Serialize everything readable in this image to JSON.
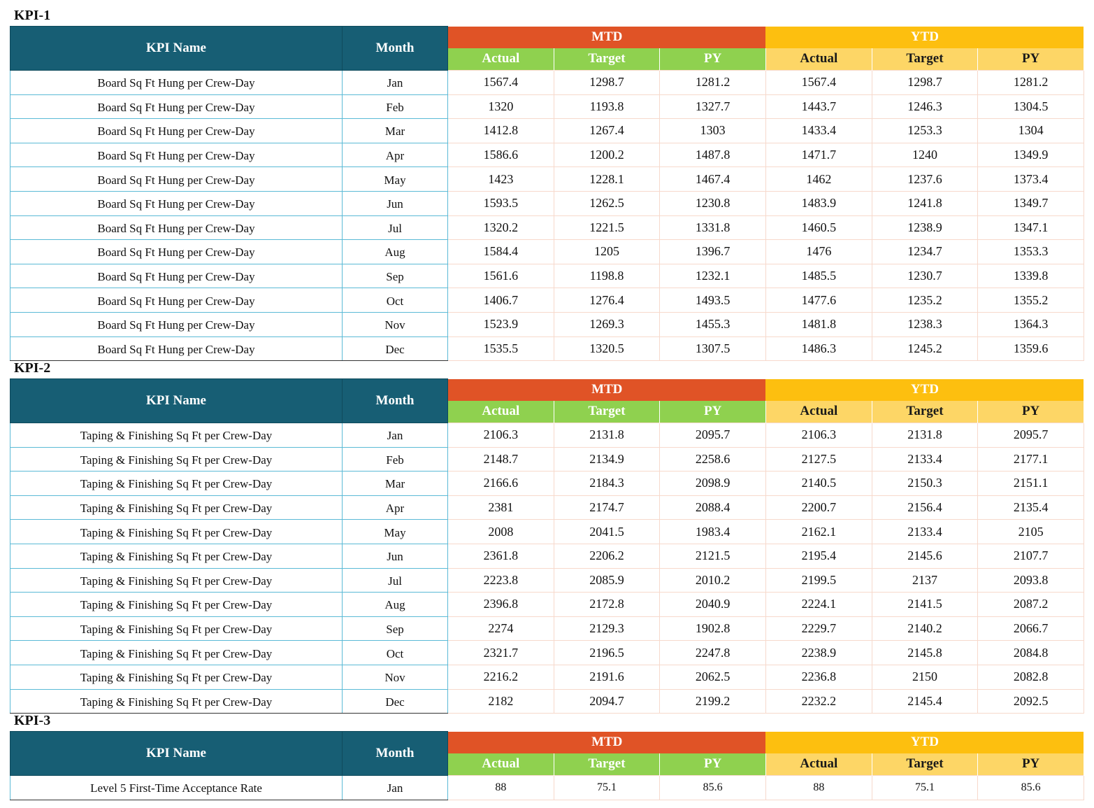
{
  "headers": {
    "kpi_name": "KPI Name",
    "month": "Month",
    "mtd": "MTD",
    "ytd": "YTD",
    "actual": "Actual",
    "target": "Target",
    "py": "PY"
  },
  "sections": [
    {
      "title": "KPI-1",
      "rows": [
        {
          "name": "Board Sq Ft Hung per Crew-Day",
          "month": "Jan",
          "mtd_actual": "1567.4",
          "mtd_target": "1298.7",
          "mtd_py": "1281.2",
          "ytd_actual": "1567.4",
          "ytd_target": "1298.7",
          "ytd_py": "1281.2"
        },
        {
          "name": "Board Sq Ft Hung per Crew-Day",
          "month": "Feb",
          "mtd_actual": "1320",
          "mtd_target": "1193.8",
          "mtd_py": "1327.7",
          "ytd_actual": "1443.7",
          "ytd_target": "1246.3",
          "ytd_py": "1304.5"
        },
        {
          "name": "Board Sq Ft Hung per Crew-Day",
          "month": "Mar",
          "mtd_actual": "1412.8",
          "mtd_target": "1267.4",
          "mtd_py": "1303",
          "ytd_actual": "1433.4",
          "ytd_target": "1253.3",
          "ytd_py": "1304"
        },
        {
          "name": "Board Sq Ft Hung per Crew-Day",
          "month": "Apr",
          "mtd_actual": "1586.6",
          "mtd_target": "1200.2",
          "mtd_py": "1487.8",
          "ytd_actual": "1471.7",
          "ytd_target": "1240",
          "ytd_py": "1349.9"
        },
        {
          "name": "Board Sq Ft Hung per Crew-Day",
          "month": "May",
          "mtd_actual": "1423",
          "mtd_target": "1228.1",
          "mtd_py": "1467.4",
          "ytd_actual": "1462",
          "ytd_target": "1237.6",
          "ytd_py": "1373.4"
        },
        {
          "name": "Board Sq Ft Hung per Crew-Day",
          "month": "Jun",
          "mtd_actual": "1593.5",
          "mtd_target": "1262.5",
          "mtd_py": "1230.8",
          "ytd_actual": "1483.9",
          "ytd_target": "1241.8",
          "ytd_py": "1349.7"
        },
        {
          "name": "Board Sq Ft Hung per Crew-Day",
          "month": "Jul",
          "mtd_actual": "1320.2",
          "mtd_target": "1221.5",
          "mtd_py": "1331.8",
          "ytd_actual": "1460.5",
          "ytd_target": "1238.9",
          "ytd_py": "1347.1"
        },
        {
          "name": "Board Sq Ft Hung per Crew-Day",
          "month": "Aug",
          "mtd_actual": "1584.4",
          "mtd_target": "1205",
          "mtd_py": "1396.7",
          "ytd_actual": "1476",
          "ytd_target": "1234.7",
          "ytd_py": "1353.3"
        },
        {
          "name": "Board Sq Ft Hung per Crew-Day",
          "month": "Sep",
          "mtd_actual": "1561.6",
          "mtd_target": "1198.8",
          "mtd_py": "1232.1",
          "ytd_actual": "1485.5",
          "ytd_target": "1230.7",
          "ytd_py": "1339.8"
        },
        {
          "name": "Board Sq Ft Hung per Crew-Day",
          "month": "Oct",
          "mtd_actual": "1406.7",
          "mtd_target": "1276.4",
          "mtd_py": "1493.5",
          "ytd_actual": "1477.6",
          "ytd_target": "1235.2",
          "ytd_py": "1355.2"
        },
        {
          "name": "Board Sq Ft Hung per Crew-Day",
          "month": "Nov",
          "mtd_actual": "1523.9",
          "mtd_target": "1269.3",
          "mtd_py": "1455.3",
          "ytd_actual": "1481.8",
          "ytd_target": "1238.3",
          "ytd_py": "1364.3"
        },
        {
          "name": "Board Sq Ft Hung per Crew-Day",
          "month": "Dec",
          "mtd_actual": "1535.5",
          "mtd_target": "1320.5",
          "mtd_py": "1307.5",
          "ytd_actual": "1486.3",
          "ytd_target": "1245.2",
          "ytd_py": "1359.6"
        }
      ]
    },
    {
      "title": "KPI-2",
      "rows": [
        {
          "name": "Taping & Finishing Sq Ft per Crew-Day",
          "month": "Jan",
          "mtd_actual": "2106.3",
          "mtd_target": "2131.8",
          "mtd_py": "2095.7",
          "ytd_actual": "2106.3",
          "ytd_target": "2131.8",
          "ytd_py": "2095.7"
        },
        {
          "name": "Taping & Finishing Sq Ft per Crew-Day",
          "month": "Feb",
          "mtd_actual": "2148.7",
          "mtd_target": "2134.9",
          "mtd_py": "2258.6",
          "ytd_actual": "2127.5",
          "ytd_target": "2133.4",
          "ytd_py": "2177.1"
        },
        {
          "name": "Taping & Finishing Sq Ft per Crew-Day",
          "month": "Mar",
          "mtd_actual": "2166.6",
          "mtd_target": "2184.3",
          "mtd_py": "2098.9",
          "ytd_actual": "2140.5",
          "ytd_target": "2150.3",
          "ytd_py": "2151.1"
        },
        {
          "name": "Taping & Finishing Sq Ft per Crew-Day",
          "month": "Apr",
          "mtd_actual": "2381",
          "mtd_target": "2174.7",
          "mtd_py": "2088.4",
          "ytd_actual": "2200.7",
          "ytd_target": "2156.4",
          "ytd_py": "2135.4"
        },
        {
          "name": "Taping & Finishing Sq Ft per Crew-Day",
          "month": "May",
          "mtd_actual": "2008",
          "mtd_target": "2041.5",
          "mtd_py": "1983.4",
          "ytd_actual": "2162.1",
          "ytd_target": "2133.4",
          "ytd_py": "2105"
        },
        {
          "name": "Taping & Finishing Sq Ft per Crew-Day",
          "month": "Jun",
          "mtd_actual": "2361.8",
          "mtd_target": "2206.2",
          "mtd_py": "2121.5",
          "ytd_actual": "2195.4",
          "ytd_target": "2145.6",
          "ytd_py": "2107.7"
        },
        {
          "name": "Taping & Finishing Sq Ft per Crew-Day",
          "month": "Jul",
          "mtd_actual": "2223.8",
          "mtd_target": "2085.9",
          "mtd_py": "2010.2",
          "ytd_actual": "2199.5",
          "ytd_target": "2137",
          "ytd_py": "2093.8"
        },
        {
          "name": "Taping & Finishing Sq Ft per Crew-Day",
          "month": "Aug",
          "mtd_actual": "2396.8",
          "mtd_target": "2172.8",
          "mtd_py": "2040.9",
          "ytd_actual": "2224.1",
          "ytd_target": "2141.5",
          "ytd_py": "2087.2"
        },
        {
          "name": "Taping & Finishing Sq Ft per Crew-Day",
          "month": "Sep",
          "mtd_actual": "2274",
          "mtd_target": "2129.3",
          "mtd_py": "1902.8",
          "ytd_actual": "2229.7",
          "ytd_target": "2140.2",
          "ytd_py": "2066.7"
        },
        {
          "name": "Taping & Finishing Sq Ft per Crew-Day",
          "month": "Oct",
          "mtd_actual": "2321.7",
          "mtd_target": "2196.5",
          "mtd_py": "2247.8",
          "ytd_actual": "2238.9",
          "ytd_target": "2145.8",
          "ytd_py": "2084.8"
        },
        {
          "name": "Taping & Finishing Sq Ft per Crew-Day",
          "month": "Nov",
          "mtd_actual": "2216.2",
          "mtd_target": "2191.6",
          "mtd_py": "2062.5",
          "ytd_actual": "2236.8",
          "ytd_target": "2150",
          "ytd_py": "2082.8"
        },
        {
          "name": "Taping & Finishing Sq Ft per Crew-Day",
          "month": "Dec",
          "mtd_actual": "2182",
          "mtd_target": "2094.7",
          "mtd_py": "2199.2",
          "ytd_actual": "2232.2",
          "ytd_target": "2145.4",
          "ytd_py": "2092.5"
        }
      ]
    },
    {
      "title": "KPI-3",
      "rows": [
        {
          "name": "Level 5 First-Time Acceptance Rate",
          "month": "Jan",
          "mtd_actual": "88",
          "mtd_target": "75.1",
          "mtd_py": "85.6",
          "ytd_actual": "88",
          "ytd_target": "75.1",
          "ytd_py": "85.6"
        }
      ]
    }
  ]
}
